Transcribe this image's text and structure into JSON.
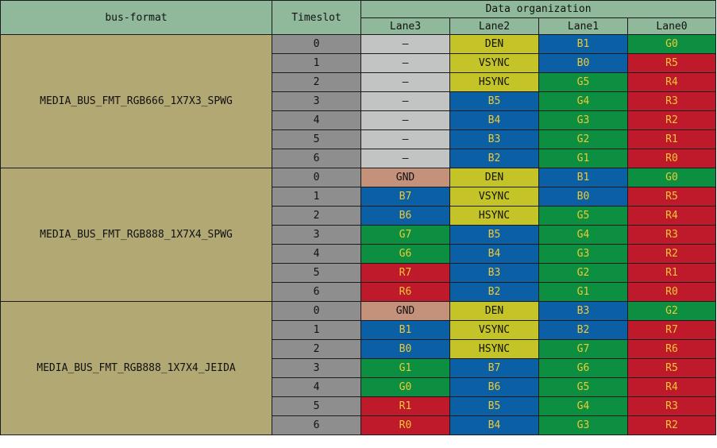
{
  "header": {
    "bus_format": "bus-format",
    "timeslot": "Timeslot",
    "data_organization": "Data organization",
    "lanes": [
      "Lane3",
      "Lane2",
      "Lane1",
      "Lane0"
    ]
  },
  "colors": {
    "header": "#8fb99a",
    "format_cell": "#b1a874",
    "timeslot_cell": "#8e8e8e",
    "gray": "#c2c4c4",
    "yellow": "#c4c429",
    "blue": "#0b5fa5",
    "green": "#0c8f41",
    "red": "#bf1a2b",
    "brown": "#c4917b",
    "signal_text": "#f2c92f"
  },
  "groups": [
    {
      "format": "MEDIA_BUS_FMT_RGB666_1X7X3_SPWG",
      "rows": [
        {
          "timeslot": "0",
          "lane3": "—",
          "lane2": "DEN",
          "lane1": "B1",
          "lane0": "G0"
        },
        {
          "timeslot": "1",
          "lane3": "—",
          "lane2": "VSYNC",
          "lane1": "B0",
          "lane0": "R5"
        },
        {
          "timeslot": "2",
          "lane3": "—",
          "lane2": "HSYNC",
          "lane1": "G5",
          "lane0": "R4"
        },
        {
          "timeslot": "3",
          "lane3": "—",
          "lane2": "B5",
          "lane1": "G4",
          "lane0": "R3"
        },
        {
          "timeslot": "4",
          "lane3": "—",
          "lane2": "B4",
          "lane1": "G3",
          "lane0": "R2"
        },
        {
          "timeslot": "5",
          "lane3": "—",
          "lane2": "B3",
          "lane1": "G2",
          "lane0": "R1"
        },
        {
          "timeslot": "6",
          "lane3": "—",
          "lane2": "B2",
          "lane1": "G1",
          "lane0": "R0"
        }
      ]
    },
    {
      "format": "MEDIA_BUS_FMT_RGB888_1X7X4_SPWG",
      "rows": [
        {
          "timeslot": "0",
          "lane3": "GND",
          "lane2": "DEN",
          "lane1": "B1",
          "lane0": "G0"
        },
        {
          "timeslot": "1",
          "lane3": "B7",
          "lane2": "VSYNC",
          "lane1": "B0",
          "lane0": "R5"
        },
        {
          "timeslot": "2",
          "lane3": "B6",
          "lane2": "HSYNC",
          "lane1": "G5",
          "lane0": "R4"
        },
        {
          "timeslot": "3",
          "lane3": "G7",
          "lane2": "B5",
          "lane1": "G4",
          "lane0": "R3"
        },
        {
          "timeslot": "4",
          "lane3": "G6",
          "lane2": "B4",
          "lane1": "G3",
          "lane0": "R2"
        },
        {
          "timeslot": "5",
          "lane3": "R7",
          "lane2": "B3",
          "lane1": "G2",
          "lane0": "R1"
        },
        {
          "timeslot": "6",
          "lane3": "R6",
          "lane2": "B2",
          "lane1": "G1",
          "lane0": "R0"
        }
      ]
    },
    {
      "format": "MEDIA_BUS_FMT_RGB888_1X7X4_JEIDA",
      "rows": [
        {
          "timeslot": "0",
          "lane3": "GND",
          "lane2": "DEN",
          "lane1": "B3",
          "lane0": "G2"
        },
        {
          "timeslot": "1",
          "lane3": "B1",
          "lane2": "VSYNC",
          "lane1": "B2",
          "lane0": "R7"
        },
        {
          "timeslot": "2",
          "lane3": "B0",
          "lane2": "HSYNC",
          "lane1": "G7",
          "lane0": "R6"
        },
        {
          "timeslot": "3",
          "lane3": "G1",
          "lane2": "B7",
          "lane1": "G6",
          "lane0": "R5"
        },
        {
          "timeslot": "4",
          "lane3": "G0",
          "lane2": "B6",
          "lane1": "G5",
          "lane0": "R4"
        },
        {
          "timeslot": "5",
          "lane3": "R1",
          "lane2": "B5",
          "lane1": "G4",
          "lane0": "R3"
        },
        {
          "timeslot": "6",
          "lane3": "R0",
          "lane2": "B4",
          "lane1": "G3",
          "lane0": "R2"
        }
      ]
    }
  ]
}
